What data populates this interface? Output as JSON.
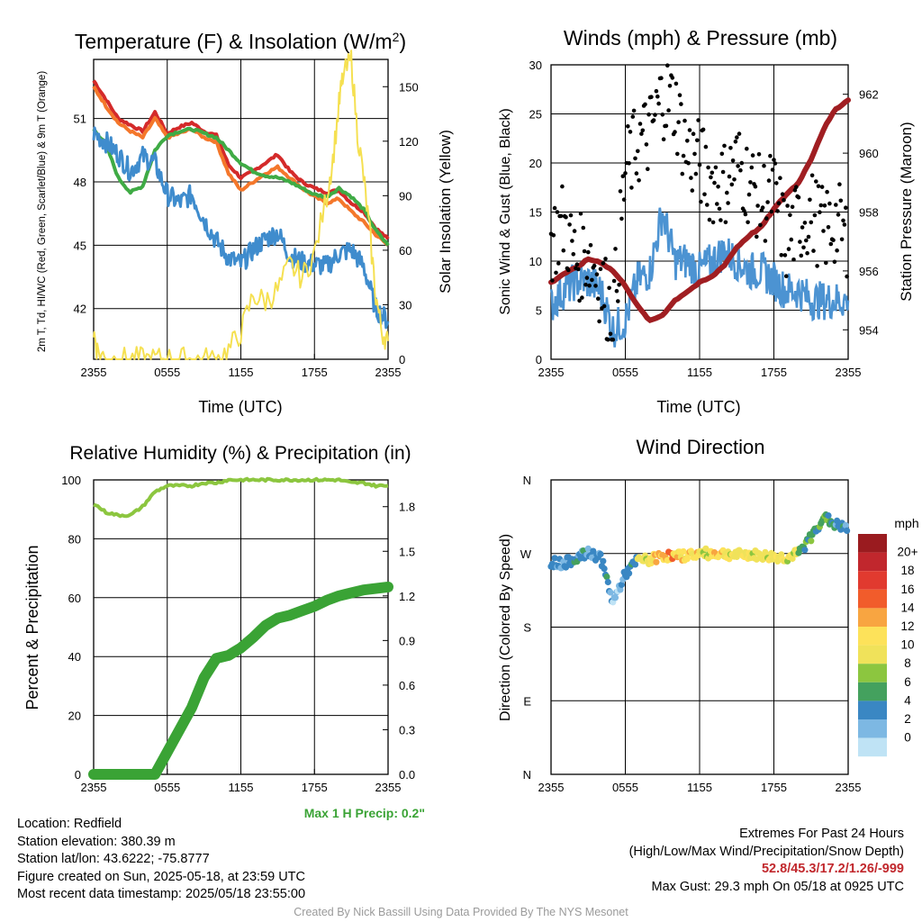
{
  "footer": {
    "location": "Location: Redfield",
    "elevation": "Station elevation: 380.39 m",
    "latlon": "Station lat/lon: 43.6222; -75.8777",
    "created": "Figure created on Sun, 2025-05-18, at 23:59 UTC",
    "recent": "Most recent data timestamp: 2025/05/18 23:55:00",
    "extremes_title": "Extremes For Past 24 Hours",
    "extremes_sub": "(High/Low/Max Wind/Precipitation/Snow Depth)",
    "extremes_vals": "52.8/45.3/17.2/1.26/-999",
    "max_gust": "Max Gust: 29.3 mph On 05/18 at 0925 UTC",
    "max_precip": "Max 1 H Precip: 0.2\"",
    "credit": "Created By Nick Bassill Using Data Provided By The NYS Mesonet"
  },
  "chart_data": [
    {
      "id": "temp",
      "type": "line",
      "title": "Temperature (F) & Insolation (W/m²)",
      "xlabel": "Time (UTC)",
      "ylabel": "2m T, Td, HI/WC (Red, Green, Scarlet/Blue) & 9m T (Orange)",
      "y2label": "Solar Insolation (Yellow)",
      "xticks": [
        "2355",
        "0555",
        "1155",
        "1755",
        "2355"
      ],
      "yticks": [
        "42",
        "45",
        "48",
        "51"
      ],
      "y2ticks": [
        "0",
        "30",
        "60",
        "90",
        "120",
        "150"
      ],
      "ylim": [
        39.6,
        53.8
      ],
      "y2lim": [
        0,
        165
      ],
      "series": [
        {
          "name": "Red",
          "color": "#d42a2a",
          "axis": "y",
          "x": [
            0,
            1,
            2,
            3,
            4,
            5,
            6,
            7,
            8,
            9,
            10,
            11,
            12,
            13,
            14,
            15,
            16,
            17,
            18,
            19,
            20,
            21,
            22,
            23,
            24
          ],
          "values": [
            52.8,
            51.9,
            51.0,
            50.7,
            50.4,
            51.3,
            50.3,
            50.6,
            50.8,
            50.4,
            50.2,
            48.8,
            48.2,
            48.5,
            48.9,
            49.3,
            48.5,
            48.0,
            47.7,
            47.5,
            47.6,
            47.0,
            46.6,
            45.8,
            45.3
          ]
        },
        {
          "name": "Orange",
          "color": "#f4772b",
          "axis": "y",
          "x": [
            0,
            1,
            2,
            3,
            4,
            5,
            6,
            7,
            8,
            9,
            10,
            11,
            12,
            13,
            14,
            15,
            16,
            17,
            18,
            19,
            20,
            21,
            22,
            23,
            24
          ],
          "values": [
            52.5,
            51.6,
            50.8,
            50.4,
            50.1,
            51.0,
            50.1,
            50.3,
            50.5,
            50.1,
            49.9,
            48.4,
            47.6,
            48.0,
            48.4,
            48.7,
            48.2,
            47.7,
            47.3,
            47.0,
            47.2,
            46.6,
            46.1,
            45.5,
            45.0
          ]
        },
        {
          "name": "Green",
          "color": "#3fab45",
          "axis": "y",
          "x": [
            0,
            1,
            2,
            3,
            4,
            5,
            6,
            7,
            8,
            9,
            10,
            11,
            12,
            13,
            14,
            15,
            16,
            17,
            18,
            19,
            20,
            21,
            22,
            23,
            24
          ],
          "values": [
            50.5,
            49.8,
            48.2,
            47.5,
            47.8,
            49.5,
            50.2,
            50.4,
            50.5,
            50.3,
            50.1,
            49.5,
            48.9,
            48.5,
            48.3,
            48.2,
            48.0,
            47.7,
            47.4,
            47.3,
            47.7,
            47.3,
            46.7,
            45.7,
            45.0
          ]
        },
        {
          "name": "Blue",
          "color": "#3f8ccd",
          "axis": "y",
          "x": [
            0,
            1,
            2,
            3,
            4,
            5,
            6,
            7,
            8,
            9,
            10,
            11,
            12,
            13,
            14,
            15,
            16,
            17,
            18,
            19,
            20,
            21,
            22,
            23,
            24
          ],
          "values": [
            50.3,
            49.9,
            49.3,
            48.5,
            49.2,
            48.9,
            47.4,
            47.0,
            47.4,
            46.2,
            45.2,
            44.4,
            44.1,
            44.8,
            45.3,
            45.6,
            44.5,
            44.2,
            44.1,
            44.0,
            44.6,
            44.8,
            44.0,
            42.0,
            41.4
          ]
        },
        {
          "name": "Yellow",
          "color": "#f5e051",
          "axis": "y2",
          "x": [
            0,
            0.3,
            1,
            2,
            3,
            4,
            5,
            6,
            7,
            8,
            9,
            10,
            11,
            12,
            13,
            14,
            15,
            16,
            17,
            18,
            19,
            19.5,
            20,
            20.3,
            21,
            21.5,
            22,
            22.5,
            23,
            23.5,
            24
          ],
          "values": [
            15,
            5,
            0,
            0,
            0,
            0,
            0,
            0,
            0,
            0,
            0,
            0,
            5,
            15,
            35,
            32,
            38,
            52,
            45,
            58,
            90,
            110,
            140,
            155,
            165,
            125,
            100,
            70,
            35,
            15,
            10
          ]
        }
      ]
    },
    {
      "id": "wind",
      "type": "scatter",
      "title": "Winds (mph) & Pressure (mb)",
      "xlabel": "Time (UTC)",
      "ylabel": "Sonic Wind & Gust (Blue, Black)",
      "y2label": "Station Pressure (Maroon)",
      "xticks": [
        "2355",
        "0555",
        "1155",
        "1755",
        "2355"
      ],
      "yticks": [
        "0",
        "5",
        "10",
        "15",
        "20",
        "25",
        "30"
      ],
      "y2ticks": [
        "954",
        "956",
        "958",
        "960",
        "962"
      ],
      "ylim": [
        0,
        30
      ],
      "y2lim": [
        953.0,
        963.0
      ],
      "series": [
        {
          "name": "Blue",
          "color": "#4c93d2",
          "axis": "y",
          "x": [
            0,
            1,
            2,
            3,
            4,
            5,
            6,
            7,
            8,
            9,
            10,
            11,
            12,
            13,
            14,
            15,
            16,
            17,
            18,
            19,
            20,
            21,
            22,
            23,
            24
          ],
          "values": [
            5.5,
            7,
            8,
            8,
            7,
            3,
            4,
            8,
            9,
            15,
            10,
            10,
            9,
            10,
            11,
            10,
            9,
            9,
            8,
            7,
            7,
            6,
            6,
            6,
            6
          ]
        },
        {
          "name": "Maroon",
          "color": "#a01e22",
          "axis": "y2",
          "x": [
            0,
            1,
            2,
            3,
            4,
            5,
            6,
            7,
            8,
            9,
            10,
            11,
            12,
            13,
            14,
            15,
            16,
            17,
            18,
            19,
            20,
            21,
            22,
            23,
            24
          ],
          "values": [
            955.6,
            955.9,
            956.1,
            956.4,
            956.3,
            956.0,
            955.5,
            954.8,
            954.3,
            954.5,
            955.0,
            955.3,
            955.6,
            955.8,
            956.2,
            956.8,
            957.2,
            957.5,
            958.1,
            958.6,
            959.0,
            959.8,
            960.8,
            961.5,
            961.8
          ]
        },
        {
          "name": "Black",
          "color": "#000000",
          "axis": "y",
          "x": [
            0,
            1,
            2,
            3,
            4,
            5,
            6,
            7,
            8,
            9,
            10,
            11,
            12,
            13,
            14,
            15,
            16,
            17,
            18,
            19,
            20,
            21,
            22,
            23,
            24
          ],
          "values": [
            12,
            14,
            10,
            11,
            8,
            4,
            19,
            22,
            23,
            27,
            26,
            21,
            20,
            18,
            18,
            20,
            18,
            16,
            17,
            12,
            14,
            15,
            13,
            14,
            12
          ]
        }
      ]
    },
    {
      "id": "rh",
      "type": "line",
      "title": "Relative Humidity (%) & Precipitation (in)",
      "ylabel": "Percent & Precipitation",
      "xticks": [
        "2355",
        "0555",
        "1155",
        "1755",
        "2355"
      ],
      "yticks": [
        "0",
        "20",
        "40",
        "60",
        "80",
        "100"
      ],
      "y2ticks": [
        "0.0",
        "0.3",
        "0.6",
        "0.9",
        "1.2",
        "1.5",
        "1.8"
      ],
      "ylim": [
        0,
        100
      ],
      "series": [
        {
          "name": "Humidity",
          "color": "#8cc63f",
          "x": [
            0,
            1,
            2,
            3,
            4,
            5,
            6,
            7,
            8,
            9,
            10,
            11,
            12,
            13,
            14,
            15,
            16,
            17,
            18,
            19,
            20,
            21,
            22,
            23,
            24
          ],
          "values": [
            92,
            89,
            88,
            88,
            91,
            96,
            98,
            98,
            98,
            99,
            99,
            100,
            100,
            100,
            100,
            100,
            100,
            100,
            100,
            100,
            100,
            99,
            99,
            98,
            98
          ]
        },
        {
          "name": "Precipitation",
          "color": "#3aa335",
          "x": [
            0,
            1,
            2,
            3,
            4,
            5,
            6,
            7,
            8,
            9,
            10,
            11,
            12,
            13,
            14,
            15,
            16,
            17,
            18,
            19,
            20,
            21,
            22,
            23,
            24
          ],
          "values": [
            0,
            0,
            0,
            0,
            0,
            0,
            0.15,
            0.3,
            0.45,
            0.65,
            0.78,
            0.8,
            0.85,
            0.92,
            1.0,
            1.05,
            1.07,
            1.1,
            1.13,
            1.17,
            1.2,
            1.22,
            1.24,
            1.25,
            1.26
          ]
        }
      ]
    },
    {
      "id": "winddir",
      "type": "scatter",
      "title": "Wind Direction",
      "ylabel": "Direction (Colored By Speed)",
      "xticks": [
        "2355",
        "0555",
        "1155",
        "1755",
        "2355"
      ],
      "yticks": [
        "N",
        "E",
        "S",
        "W",
        "N"
      ],
      "ylim": [
        0,
        360
      ],
      "legend_title": "mph",
      "legend_labels": [
        "20+",
        "18",
        "16",
        "14",
        "12",
        "10",
        "8",
        "6",
        "4",
        "2",
        "0"
      ],
      "legend_colors": [
        "#9a1b1f",
        "#c1272d",
        "#e13a2f",
        "#f15c2b",
        "#f8a541",
        "#fde25a",
        "#f0e25a",
        "#8cc63f",
        "#44a15e",
        "#3a87c3",
        "#7db8e3",
        "#bfe3f5"
      ],
      "series": [
        {
          "name": "Direction",
          "x": [
            0,
            1,
            2,
            3,
            4,
            5,
            6,
            7,
            8,
            9,
            10,
            11,
            12,
            13,
            14,
            15,
            16,
            17,
            18,
            19,
            20,
            21,
            22,
            23,
            24
          ],
          "values": [
            260,
            257,
            265,
            270,
            266,
            210,
            245,
            262,
            262,
            268,
            266,
            268,
            270,
            270,
            270,
            268,
            269,
            267,
            266,
            265,
            270,
            290,
            315,
            305,
            300
          ],
          "speeds": [
            4,
            4,
            4,
            4,
            4,
            2,
            4,
            10,
            12,
            14,
            12,
            12,
            10,
            12,
            10,
            10,
            10,
            10,
            10,
            10,
            6,
            6,
            6,
            4,
            6
          ]
        }
      ]
    }
  ]
}
